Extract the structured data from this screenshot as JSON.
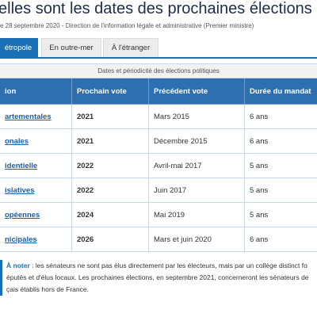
{
  "header": {
    "title": "elles sont les dates des prochaines élections ?",
    "subtitle": "e 28 septembre 2020 - Direction de l'information légale et administrative (Premier ministre)"
  },
  "tabs": [
    "étropole",
    "En outre-mer",
    "À l'étranger"
  ],
  "table": {
    "caption": "Dates et périodicité des élections politiques",
    "headers": [
      "ion",
      "Prochain vote",
      "Précédent vote",
      "Durée du mandat"
    ],
    "rows": [
      [
        "artementales",
        "2021",
        "Mars 2015",
        "6 ans"
      ],
      [
        "onales",
        "2021",
        "Décembre 2015",
        "6 ans"
      ],
      [
        "identielle",
        "2022",
        "Avril-mai 2017",
        "5 ans"
      ],
      [
        "islatives",
        "2022",
        "Juin 2017",
        "5 ans"
      ],
      [
        "opéennes",
        "2024",
        "Mai 2019",
        "5 ans"
      ],
      [
        "nicipales",
        "2026",
        "Mars et juin 2020",
        "6 ans"
      ]
    ]
  },
  "note": {
    "label": "À noter",
    "lines": [
      " : les sénateurs ne sont pas élus directement par les électeurs, mais par un collège distinct fo",
      "éputés et d'élus locaux. Les prochaines élections, en septembre 2021, concerneront les sénateurs de",
      "çais établis hors de France."
    ]
  }
}
